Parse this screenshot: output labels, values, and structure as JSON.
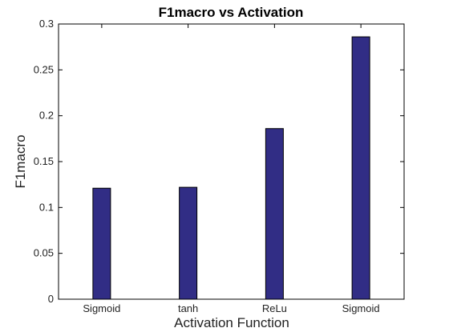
{
  "chart_data": {
    "type": "bar",
    "title": "F1macro vs Activation",
    "xlabel": "Activation Function",
    "ylabel": "F1macro",
    "categories": [
      "Sigmoid",
      "tanh",
      "ReLu",
      "Sigmoid"
    ],
    "values": [
      0.121,
      0.122,
      0.186,
      0.286
    ],
    "ylim": [
      0,
      0.3
    ],
    "yticks": [
      0,
      0.05,
      0.1,
      0.15,
      0.2,
      0.25,
      0.3
    ],
    "ytick_labels": [
      "0",
      "0.05",
      "0.1",
      "0.15",
      "0.2",
      "0.25",
      "0.3"
    ],
    "grid": false,
    "legend": "none",
    "colors": {
      "bar": "#312d85",
      "axis": "#000000"
    }
  }
}
